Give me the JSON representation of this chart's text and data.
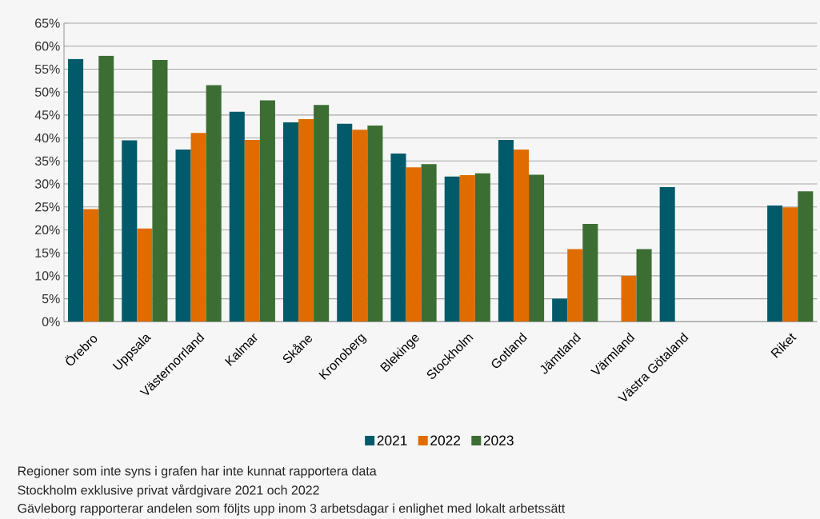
{
  "chart_data": {
    "type": "bar",
    "categories": [
      "Örebro",
      "Uppsala",
      "Västernorrland",
      "Kalmar",
      "Skåne",
      "Kronoberg",
      "Blekinge",
      "Stockholm",
      "Gotland",
      "Jämtland",
      "Värmland",
      "Västra Götaland",
      null,
      "Riket"
    ],
    "series": [
      {
        "name": "2021",
        "color": "#005a6a",
        "values": [
          57.2,
          39.5,
          37.5,
          45.7,
          43.4,
          43.1,
          36.6,
          31.6,
          39.6,
          5.0,
          null,
          29.3,
          null,
          25.3
        ]
      },
      {
        "name": "2022",
        "color": "#e06c00",
        "values": [
          24.5,
          20.3,
          41.1,
          39.6,
          44.1,
          41.8,
          33.6,
          31.9,
          37.5,
          15.8,
          10.0,
          null,
          null,
          24.9
        ]
      },
      {
        "name": "2023",
        "color": "#3c6e33",
        "values": [
          57.9,
          57.0,
          51.5,
          48.2,
          47.2,
          42.7,
          34.3,
          32.3,
          32.0,
          21.3,
          15.8,
          null,
          null,
          28.4
        ]
      }
    ],
    "ylim": [
      0,
      65
    ],
    "yticks": [
      {
        "value": 0,
        "label": "0%"
      },
      {
        "value": 5,
        "label": "5%"
      },
      {
        "value": 10,
        "label": "10%"
      },
      {
        "value": 15,
        "label": "15%"
      },
      {
        "value": 20,
        "label": "20%"
      },
      {
        "value": 25,
        "label": "25%"
      },
      {
        "value": 30,
        "label": "30%"
      },
      {
        "value": 35,
        "label": "35%"
      },
      {
        "value": 40,
        "label": "40%"
      },
      {
        "value": 45,
        "label": "45%"
      },
      {
        "value": 50,
        "label": "50%"
      },
      {
        "value": 55,
        "label": "55%"
      },
      {
        "value": 60,
        "label": "60%"
      },
      {
        "value": 65,
        "label": "65%"
      }
    ],
    "grid": "y",
    "legend": "bottom",
    "annotations": [
      "Regioner som inte syns i grafen har inte kunnat rapportera data",
      "Stockholm exklusive privat vårdgivare 2021 och 2022",
      "Gävleborg rapporterar andelen som följts upp inom 3 arbetsdagar i enlighet med lokalt arbetssätt"
    ]
  }
}
